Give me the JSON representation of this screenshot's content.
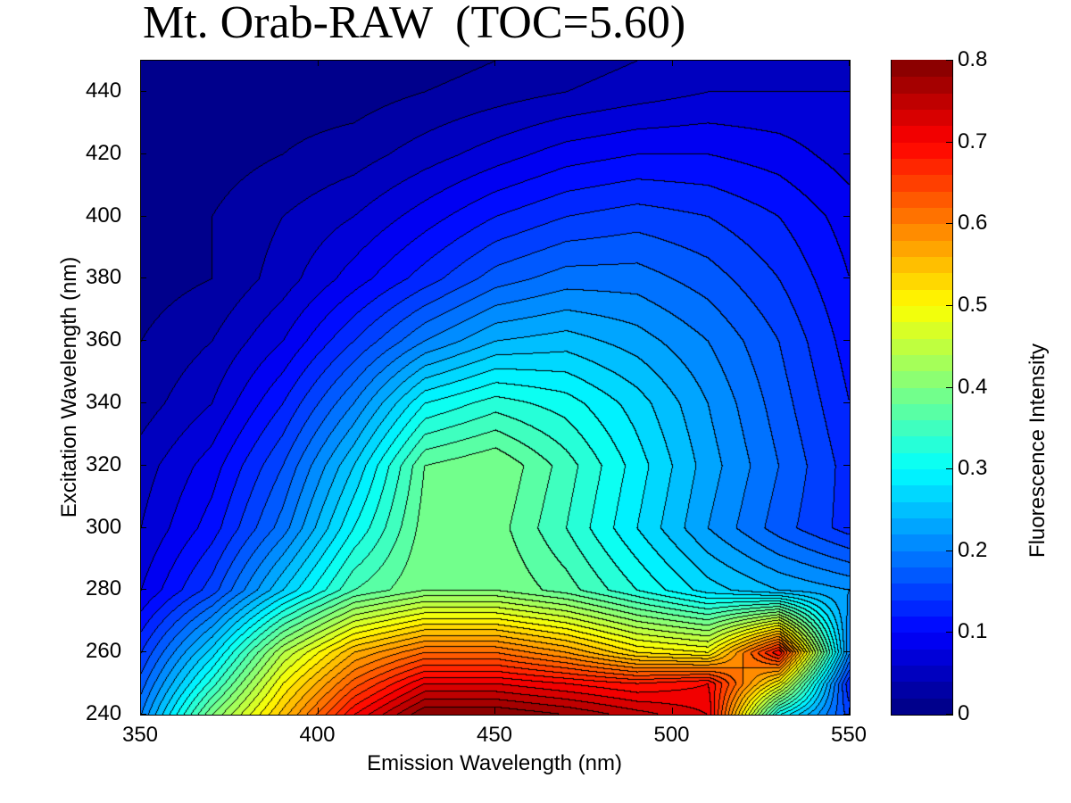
{
  "chart_data": {
    "type": "heatmap",
    "subtype": "filled-contour",
    "title": "Mt. Orab-RAW  (TOC=5.60)",
    "xlabel": "Emission Wavelength (nm)",
    "ylabel": "Excitation Wavelength (nm)",
    "colorbar_label": "Fluorescence Intensity",
    "xlim": [
      350,
      550
    ],
    "ylim": [
      240,
      450
    ],
    "clim": [
      0,
      0.8
    ],
    "contour_step": 0.02,
    "colormap": "jet",
    "xticks": [
      "350",
      "400",
      "450",
      "500",
      "550"
    ],
    "yticks": [
      "240",
      "260",
      "280",
      "300",
      "320",
      "340",
      "360",
      "380",
      "400",
      "420",
      "440"
    ],
    "cticks": [
      "0",
      "0.1",
      "0.2",
      "0.3",
      "0.4",
      "0.5",
      "0.6",
      "0.7",
      "0.8"
    ],
    "emission": [
      350,
      370,
      390,
      410,
      430,
      450,
      470,
      490,
      510,
      530,
      550
    ],
    "excitation": [
      240,
      250,
      260,
      280,
      300,
      320,
      340,
      360,
      380,
      400,
      420,
      440,
      450
    ],
    "intensity": [
      [
        0.2,
        0.4,
        0.55,
        0.7,
        0.8,
        0.8,
        0.78,
        0.75,
        0.72,
        0.3,
        0.15
      ],
      [
        0.17,
        0.33,
        0.5,
        0.63,
        0.72,
        0.72,
        0.7,
        0.68,
        0.7,
        0.5,
        0.12
      ],
      [
        0.14,
        0.27,
        0.44,
        0.56,
        0.62,
        0.62,
        0.58,
        0.52,
        0.5,
        0.7,
        0.2
      ],
      [
        0.08,
        0.15,
        0.26,
        0.36,
        0.4,
        0.4,
        0.37,
        0.32,
        0.27,
        0.24,
        0.22
      ],
      [
        0.06,
        0.11,
        0.19,
        0.3,
        0.39,
        0.39,
        0.34,
        0.28,
        0.22,
        0.17,
        0.13
      ],
      [
        0.05,
        0.09,
        0.16,
        0.26,
        0.38,
        0.4,
        0.35,
        0.29,
        0.23,
        0.18,
        0.13
      ],
      [
        0.03,
        0.06,
        0.12,
        0.2,
        0.3,
        0.33,
        0.31,
        0.27,
        0.22,
        0.17,
        0.12
      ],
      [
        0.02,
        0.04,
        0.08,
        0.14,
        0.2,
        0.24,
        0.25,
        0.23,
        0.2,
        0.16,
        0.11
      ],
      [
        0.01,
        0.02,
        0.05,
        0.09,
        0.13,
        0.17,
        0.19,
        0.19,
        0.17,
        0.14,
        0.1
      ],
      [
        0.01,
        0.02,
        0.04,
        0.06,
        0.09,
        0.12,
        0.14,
        0.15,
        0.14,
        0.12,
        0.09
      ],
      [
        0.01,
        0.01,
        0.02,
        0.03,
        0.05,
        0.07,
        0.09,
        0.1,
        0.1,
        0.09,
        0.07
      ],
      [
        0.01,
        0.01,
        0.01,
        0.01,
        0.02,
        0.03,
        0.04,
        0.05,
        0.06,
        0.06,
        0.06
      ],
      [
        0.01,
        0.01,
        0.01,
        0.01,
        0.01,
        0.02,
        0.03,
        0.04,
        0.05,
        0.05,
        0.05
      ]
    ]
  }
}
